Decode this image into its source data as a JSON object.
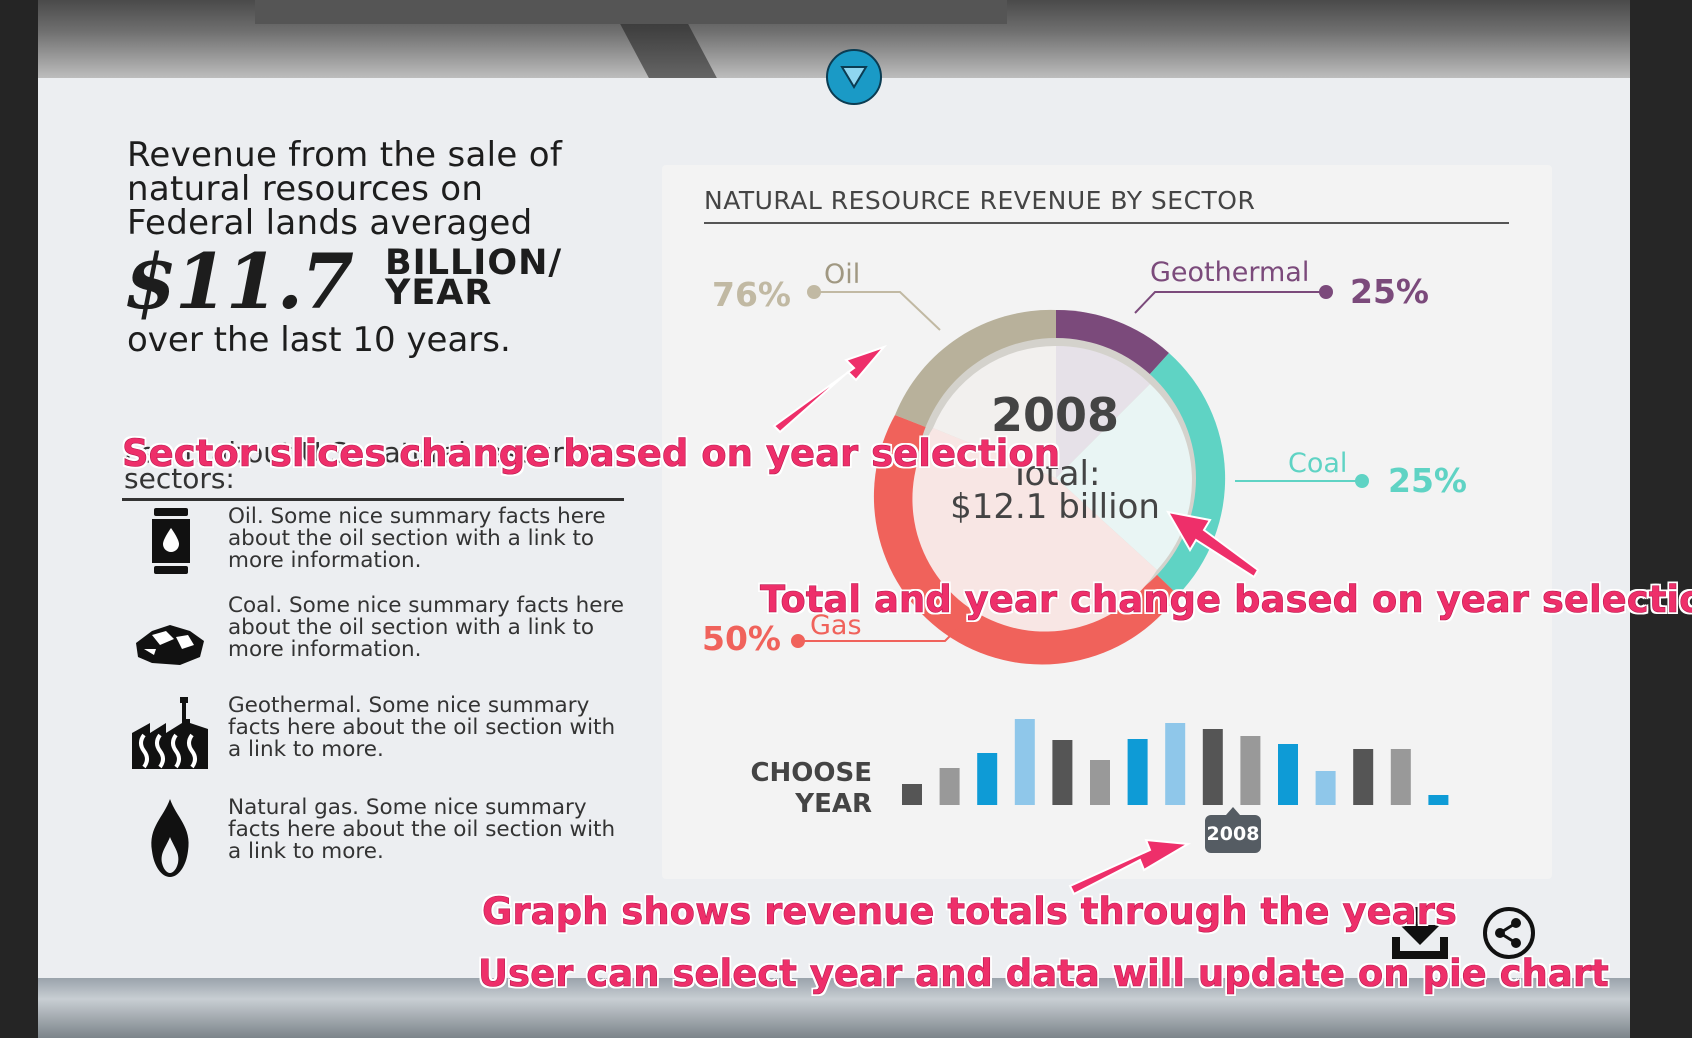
{
  "colors": {
    "oil": "#c1b9a3",
    "gas": "#f0625b",
    "coal": "#5fd3c4",
    "geothermal": "#7b4a7b",
    "annotation": "#ee2f6a",
    "accent": "#1a9ac6"
  },
  "scroll_button": {
    "icon": "triangle-down-icon"
  },
  "intro": {
    "lines": [
      "Revenue from the sale of",
      "natural resources on",
      "Federal lands averaged"
    ],
    "stat_value": "$11.7",
    "stat_unit_line1": "BILLION/",
    "stat_unit_line2": "YEAR",
    "closing": "over the last 10 years."
  },
  "sectors": {
    "heading": "Learn about U.S. natural resource sectors:",
    "items": [
      {
        "icon": "oil-barrel-icon",
        "text": "Oil. Some nice summary facts here about the oil section with a link to more information."
      },
      {
        "icon": "coal-icon",
        "text": "Coal. Some nice summary facts here about the oil section with a link to more information."
      },
      {
        "icon": "geothermal-icon",
        "text": "Geothermal. Some nice summary facts here about the oil section with a link to more."
      },
      {
        "icon": "flame-icon",
        "text": "Natural gas. Some nice summary facts here about the oil section with a link to more."
      }
    ]
  },
  "chart": {
    "title": "NATURAL RESOURCE REVENUE BY SECTOR",
    "center_year": "2008",
    "center_total_label": "Total:",
    "center_total_value": "$12.1 billion",
    "labels": {
      "oil": {
        "name": "Oil",
        "pct": "76%"
      },
      "geothermal": {
        "name": "Geothermal",
        "pct": "25%"
      },
      "coal": {
        "name": "Coal",
        "pct": "25%"
      },
      "gas": {
        "name": "Gas",
        "pct": "50%"
      }
    },
    "choose_label_line1": "CHOOSE",
    "choose_label_line2": "YEAR",
    "selected_year_tooltip": "2008"
  },
  "chart_data": {
    "type": "bar",
    "description_values_relative": true,
    "values": [
      2,
      3.5,
      5,
      8.2,
      6.2,
      4.3,
      6.3,
      7.8,
      7.2,
      6.6,
      5.8,
      3.2,
      5.3,
      5.3,
      1
    ],
    "series_colors": [
      "#555",
      "#999",
      "#0e9bd6",
      "#8fc7ea",
      "#555",
      "#999",
      "#0e9bd6",
      "#8fc7ea",
      "#555",
      "#999",
      "#0e9bd6",
      "#8fc7ea",
      "#555",
      "#999",
      "#0e9bd6"
    ],
    "selected_index": 7,
    "pie": [
      {
        "sector": "Oil",
        "value": 76
      },
      {
        "sector": "Geothermal",
        "value": 25
      },
      {
        "sector": "Coal",
        "value": 25
      },
      {
        "sector": "Gas",
        "value": 50
      }
    ]
  },
  "annotations": {
    "sector_slices": "Sector slices change based on year selection",
    "total_and_year": "Total and year change based on year selection",
    "graph_totals": "Graph shows revenue totals through the years",
    "user_select": "User can select year and data will update on pie chart"
  },
  "actions": {
    "download_icon": "download-icon",
    "share_icon": "share-icon"
  }
}
